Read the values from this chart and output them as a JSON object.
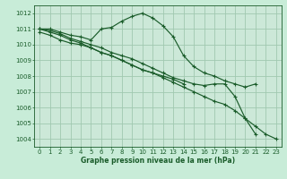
{
  "background_color": "#c8ecd8",
  "plot_bg_color": "#cce8d8",
  "grid_color": "#a0c8b0",
  "line_color": "#1a5c2a",
  "xlabel": "Graphe pression niveau de la mer (hPa)",
  "ylim": [
    1003.5,
    1012.5
  ],
  "xlim": [
    -0.5,
    23.5
  ],
  "yticks": [
    1004,
    1005,
    1006,
    1007,
    1008,
    1009,
    1010,
    1011,
    1012
  ],
  "xticks": [
    0,
    1,
    2,
    3,
    4,
    5,
    6,
    7,
    8,
    9,
    10,
    11,
    12,
    13,
    14,
    15,
    16,
    17,
    18,
    19,
    20,
    21,
    22,
    23
  ],
  "lines": [
    {
      "x": [
        0,
        1,
        2,
        3,
        4,
        5,
        6,
        7,
        8,
        9,
        10,
        11,
        12,
        13,
        14,
        15,
        16,
        17,
        18,
        19,
        20,
        21
      ],
      "y": [
        1011.0,
        1011.0,
        1010.8,
        1010.6,
        1010.5,
        1010.3,
        1011.0,
        1011.1,
        1011.5,
        1011.8,
        1012.0,
        1011.7,
        1011.2,
        1010.5,
        1009.3,
        1008.6,
        1008.2,
        1008.0,
        1007.7,
        1007.5,
        1007.3,
        1007.5
      ]
    },
    {
      "x": [
        0,
        1,
        2,
        3,
        4,
        5,
        6,
        7,
        8,
        9,
        10,
        11,
        12,
        13,
        14
      ],
      "y": [
        1010.8,
        1010.6,
        1010.3,
        1010.1,
        1010.0,
        1009.8,
        1009.5,
        1009.3,
        1009.0,
        1008.7,
        1008.4,
        1008.2,
        1008.0,
        1007.8,
        1007.5
      ]
    },
    {
      "x": [
        0,
        1,
        2,
        3,
        4,
        5,
        6,
        7,
        8,
        9,
        10,
        11,
        12,
        13,
        14,
        15,
        16,
        17,
        18,
        19,
        20,
        21
      ],
      "y": [
        1011.0,
        1010.9,
        1010.7,
        1010.4,
        1010.2,
        1010.0,
        1009.8,
        1009.5,
        1009.3,
        1009.1,
        1008.8,
        1008.5,
        1008.2,
        1007.9,
        1007.7,
        1007.5,
        1007.4,
        1007.5,
        1007.5,
        1006.7,
        1005.3,
        1004.3
      ]
    },
    {
      "x": [
        0,
        1,
        2,
        3,
        4,
        5,
        6,
        7,
        8,
        9,
        10,
        11,
        12,
        13,
        14,
        15,
        16,
        17,
        18,
        19,
        20,
        21,
        22,
        23
      ],
      "y": [
        1011.0,
        1010.8,
        1010.6,
        1010.3,
        1010.1,
        1009.8,
        1009.5,
        1009.3,
        1009.0,
        1008.7,
        1008.4,
        1008.2,
        1007.9,
        1007.6,
        1007.3,
        1007.0,
        1006.7,
        1006.4,
        1006.2,
        1005.8,
        1005.3,
        1004.8,
        1004.3,
        1004.0
      ]
    }
  ]
}
